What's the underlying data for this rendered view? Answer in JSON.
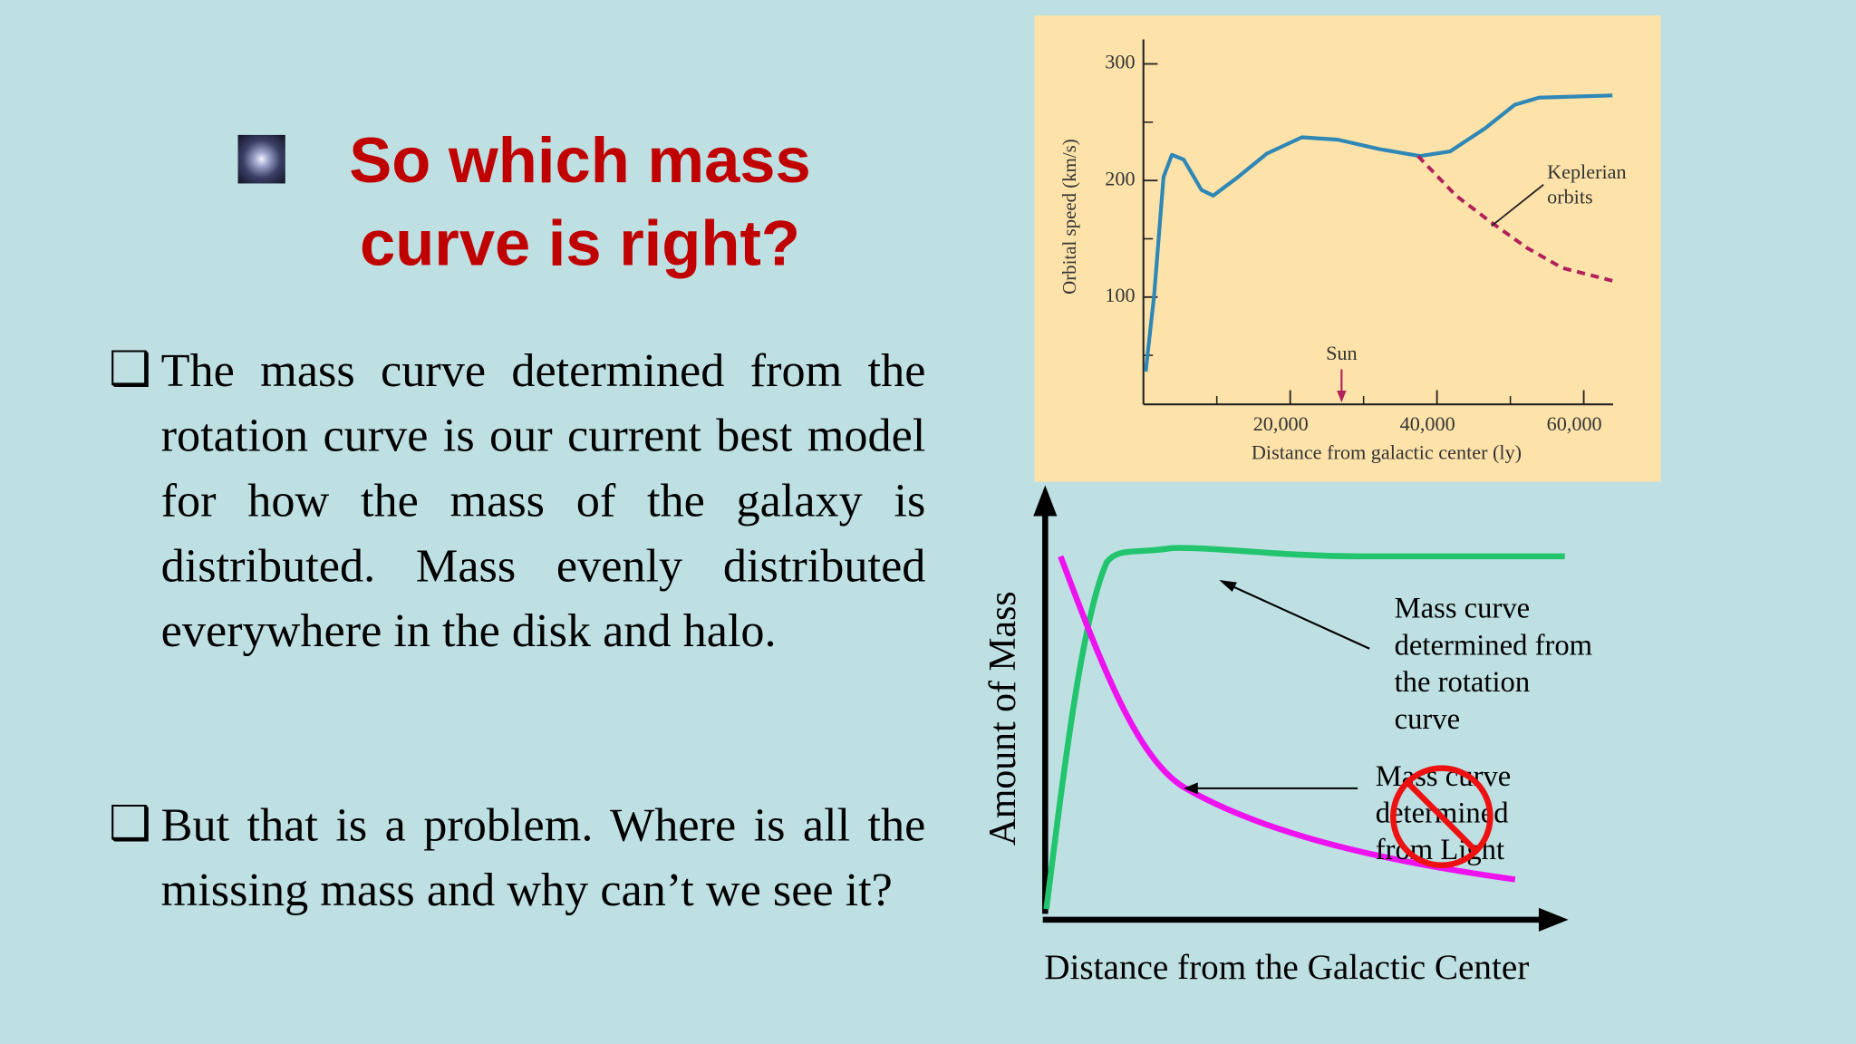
{
  "title": {
    "lines": [
      "So which mass",
      "curve is right?"
    ]
  },
  "bullets": [
    {
      "marker": "❑",
      "text": "The mass curve determined from the rotation curve is our current best model for how the mass of the galaxy is distributed.  Mass evenly distributed everywhere in the disk and halo."
    },
    {
      "marker": "❑",
      "text": "But that is a problem.  Where is all the missing mass and why can’t we see it?"
    }
  ],
  "chart_data": {
    "type": "line",
    "ylabel": "Orbital speed (km/s)",
    "xlabel": "Distance from galactic center (ly)",
    "xlim": [
      0,
      64000
    ],
    "ylim": [
      8,
      321
    ],
    "xticks": [
      {
        "value": 20000,
        "label": "20,000"
      },
      {
        "value": 40000,
        "label": "40,000"
      },
      {
        "value": 60000,
        "label": "60,000"
      }
    ],
    "minor_xticks": [
      10000,
      30000,
      50000
    ],
    "yticks": [
      100,
      200,
      300
    ],
    "minor_yticks": [
      50,
      150,
      250
    ],
    "series": [
      {
        "color": "#2f87b6",
        "dashed": false,
        "x": [
          300,
          1450,
          2740,
          3870,
          5480,
          7900,
          9500,
          12700,
          16800,
          21600,
          26500,
          32100,
          37700,
          41800,
          46600,
          50600,
          53900,
          63900
        ],
        "values": [
          36,
          101,
          203,
          222,
          218,
          192,
          187,
          202,
          223,
          237,
          235,
          227,
          221,
          225,
          245,
          265,
          271,
          273
        ]
      },
      {
        "color": "#b0205a",
        "dashed": true,
        "x": [
          37400,
          42600,
          47400,
          52300,
          57100,
          63900
        ],
        "values": [
          221,
          187,
          164,
          142,
          125,
          114
        ]
      }
    ],
    "annotations": [
      {
        "lines": [
          "Keplerian",
          "orbits"
        ]
      }
    ],
    "marker": {
      "text": "Sun",
      "x": 27000
    }
  },
  "diagram": {
    "ylabel": "Amount of Mass",
    "xlabel": "Distance from the Galactic Center",
    "labels": [
      {
        "lines": [
          "Mass curve",
          "determined from",
          "the rotation",
          "curve"
        ]
      },
      {
        "lines": [
          "Mass curve",
          "determined",
          "from Light"
        ]
      }
    ]
  }
}
